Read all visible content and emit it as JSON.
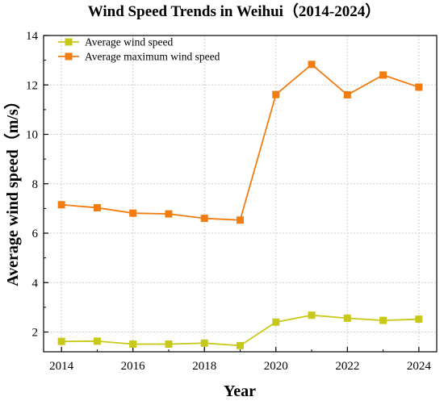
{
  "chart_data": {
    "type": "line",
    "title": "Wind Speed Trends in Weihui（2014-2024）",
    "xlabel": "Year",
    "ylabel": "Average wind speed（m/s）",
    "x": [
      2014,
      2015,
      2016,
      2017,
      2018,
      2019,
      2020,
      2021,
      2022,
      2023,
      2024
    ],
    "xlim": [
      2013.5,
      2024.5
    ],
    "xticks": [
      "2014",
      "2016",
      "2018",
      "2020",
      "2022",
      "2024"
    ],
    "ylim": [
      1.2,
      14
    ],
    "yticks": [
      "2",
      "4",
      "6",
      "8",
      "10",
      "12",
      "14"
    ],
    "grid": true,
    "legend_position": "top-left",
    "series": [
      {
        "name": "Average wind speed",
        "color": "#c8c81a",
        "marker": "square",
        "values": [
          1.62,
          1.63,
          1.51,
          1.51,
          1.55,
          1.45,
          2.4,
          2.68,
          2.56,
          2.47,
          2.52
        ]
      },
      {
        "name": "Average maximum wind speed",
        "color": "#f07c12",
        "marker": "square",
        "values": [
          7.15,
          7.03,
          6.81,
          6.78,
          6.6,
          6.53,
          11.61,
          12.83,
          11.6,
          12.4,
          11.91
        ]
      }
    ]
  }
}
